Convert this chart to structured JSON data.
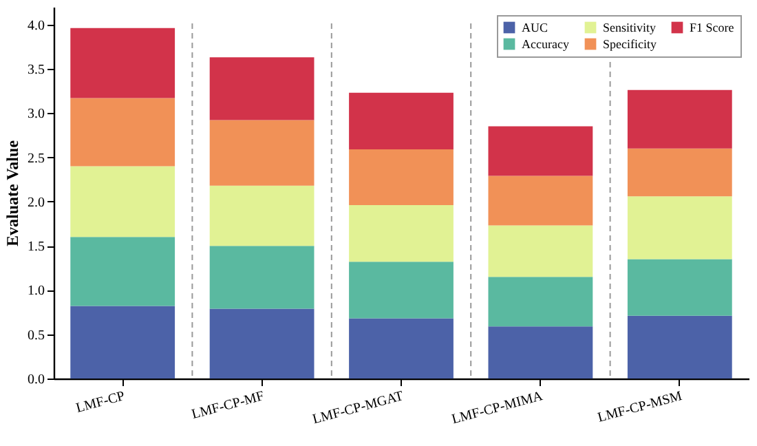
{
  "chart_data": {
    "type": "bar",
    "stacked": true,
    "ylabel": "Evaluate Value",
    "categories": [
      "LMF-CP",
      "LMF-CP-MF",
      "LMF-CP-MGAT",
      "LMF-CP-MIMA",
      "LMF-CP-MSM"
    ],
    "series": [
      {
        "name": "AUC",
        "color": "#4c62a8",
        "values": [
          0.82,
          0.79,
          0.68,
          0.59,
          0.71
        ]
      },
      {
        "name": "Accuracy",
        "color": "#5ab9a0",
        "values": [
          0.78,
          0.71,
          0.64,
          0.56,
          0.64
        ]
      },
      {
        "name": "Sensitivity",
        "color": "#e1f294",
        "values": [
          0.8,
          0.68,
          0.64,
          0.58,
          0.71
        ]
      },
      {
        "name": "Specificity",
        "color": "#f19157",
        "values": [
          0.77,
          0.74,
          0.63,
          0.56,
          0.54
        ]
      },
      {
        "name": "F1 Score",
        "color": "#d2334a",
        "values": [
          0.79,
          0.71,
          0.64,
          0.56,
          0.66
        ]
      }
    ],
    "ylim": [
      0,
      4.2
    ],
    "yticks": [
      {
        "value": 0,
        "label": "0.0"
      },
      {
        "value": 0.5,
        "label": "0.5"
      },
      {
        "value": 1,
        "label": "1.0"
      },
      {
        "value": 1.5,
        "label": "1.5"
      },
      {
        "value": 2,
        "label": "2.0"
      },
      {
        "value": 2.5,
        "label": "2.5"
      },
      {
        "value": 3,
        "label": "3.0"
      },
      {
        "value": 3.5,
        "label": "3.5"
      },
      {
        "value": 4,
        "label": "4.0"
      }
    ],
    "grid": false,
    "legend": "top right"
  }
}
